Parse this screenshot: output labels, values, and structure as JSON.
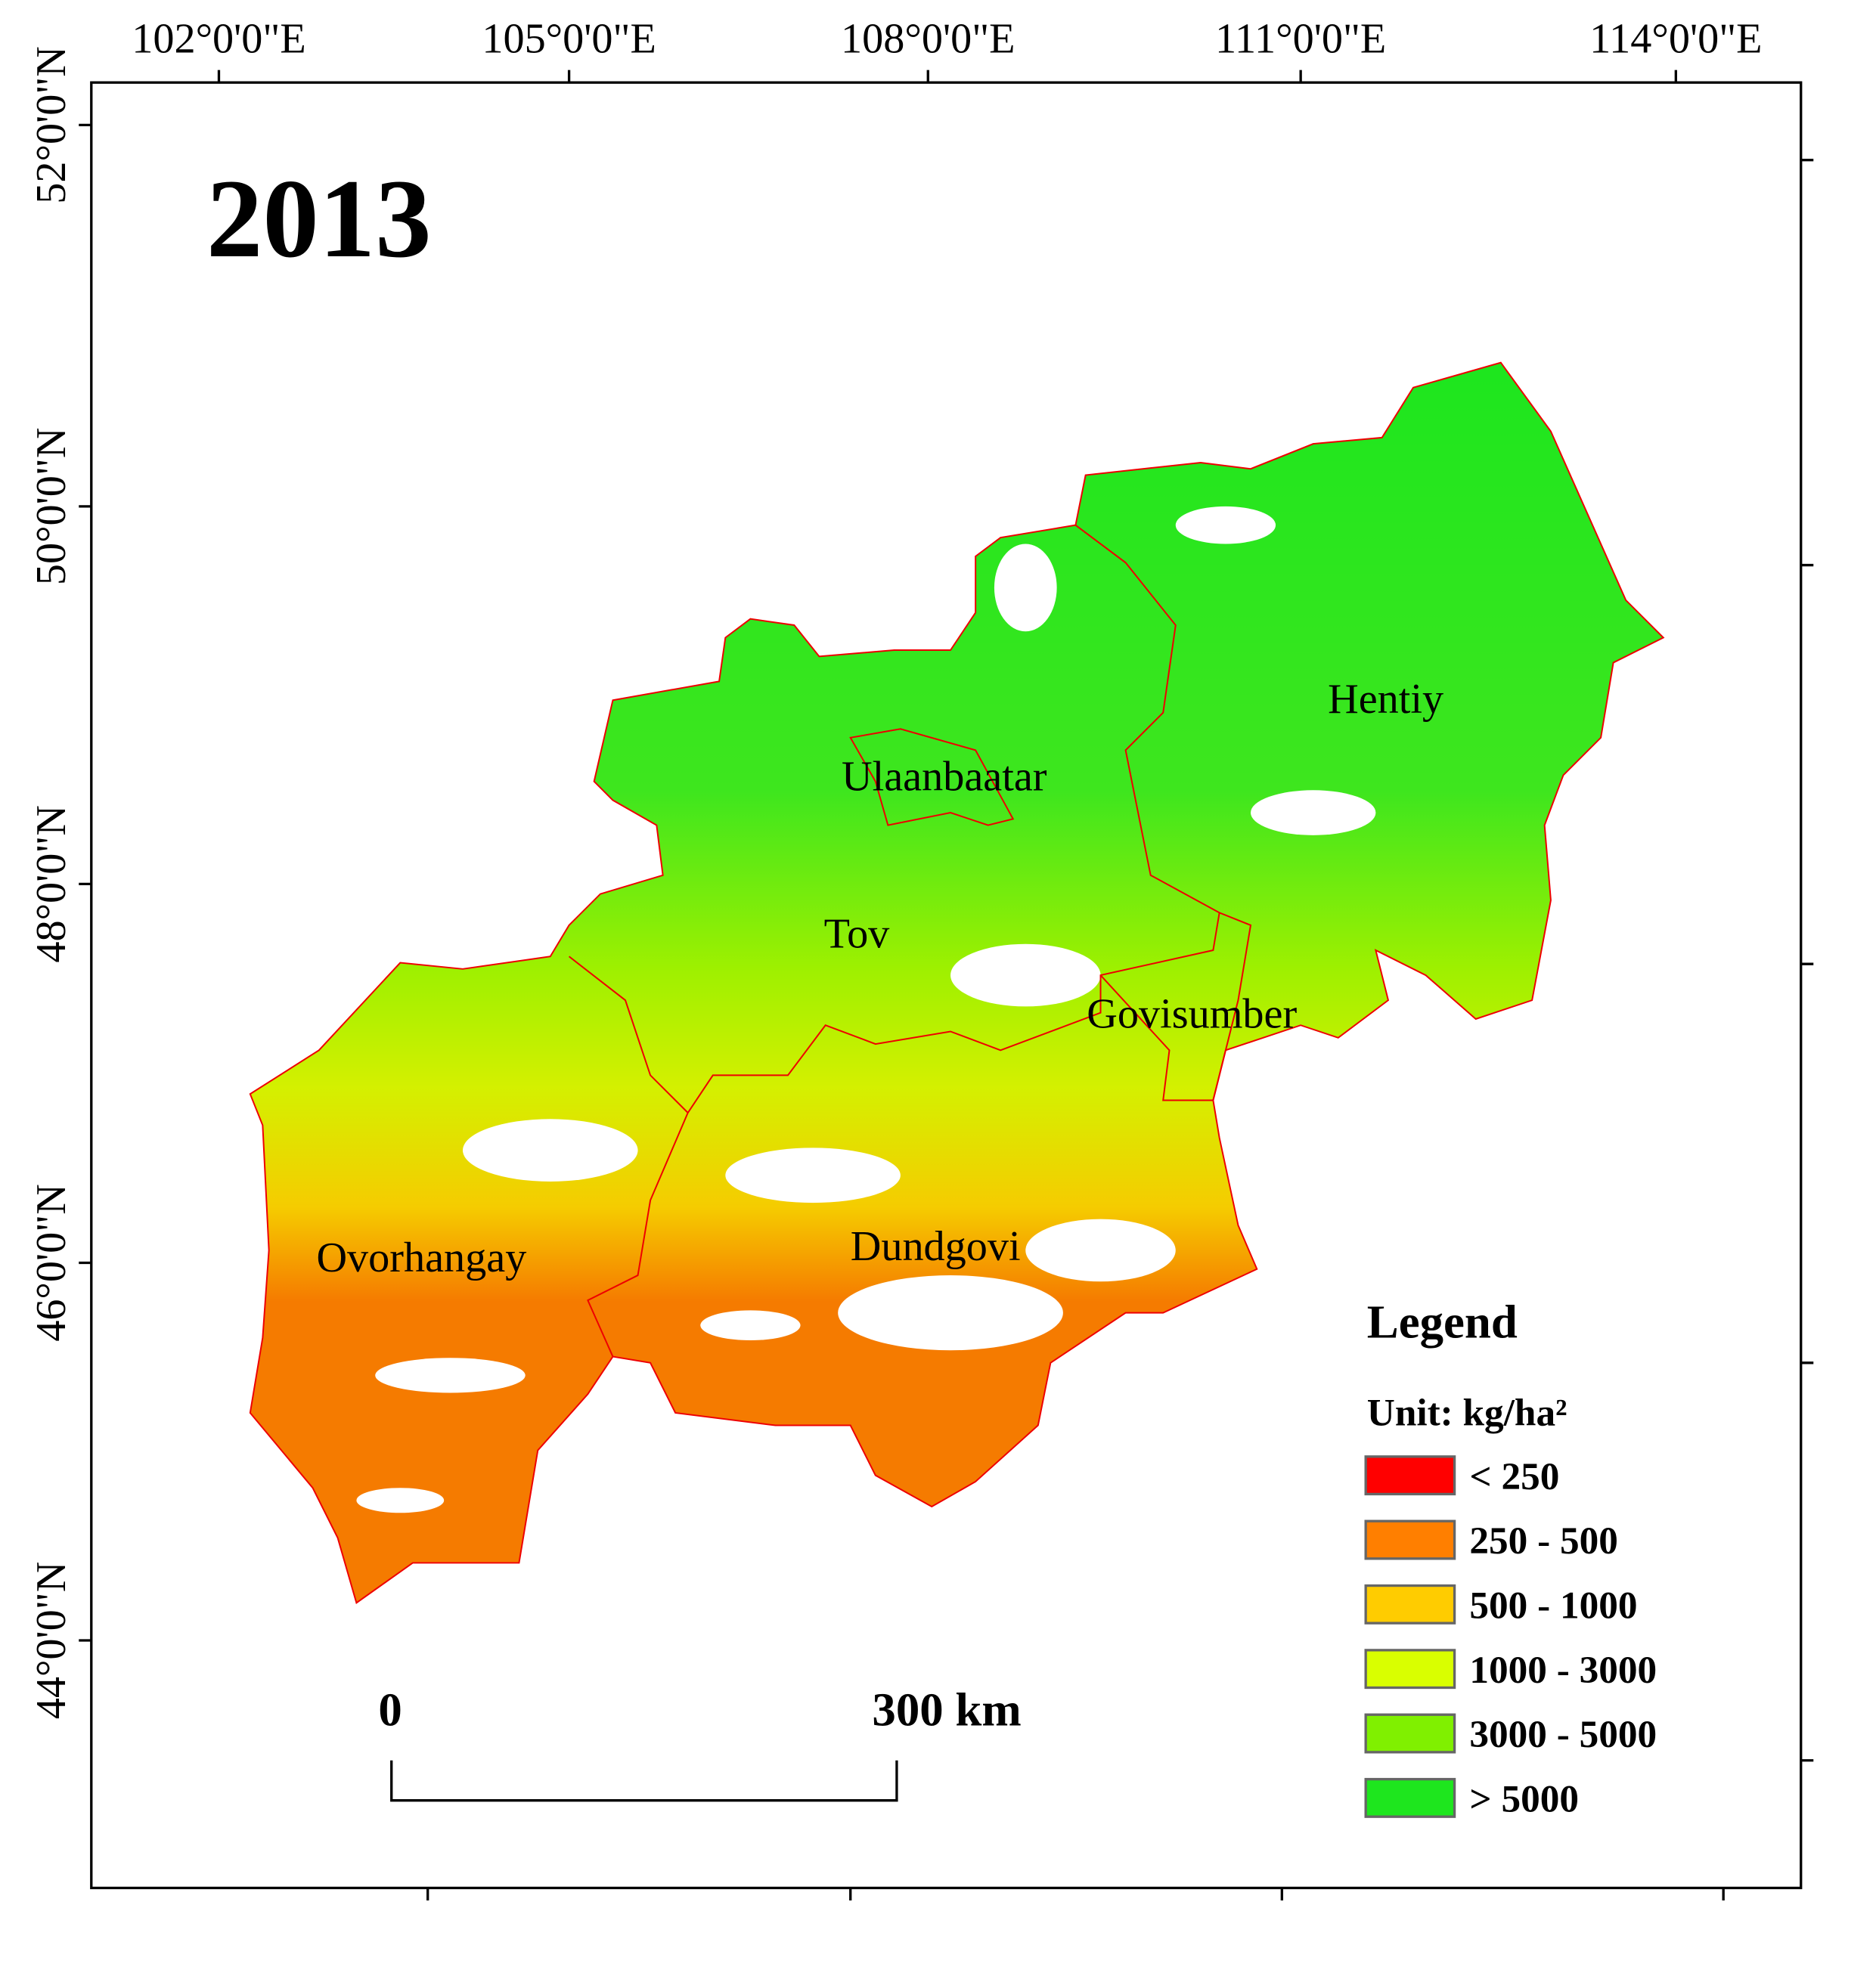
{
  "title": "2013",
  "longitude_labels": [
    "102°0'0\"E",
    "105°0'0\"E",
    "108°0'0\"E",
    "111°0'0\"E",
    "114°0'0\"E"
  ],
  "latitude_labels": [
    "52°0'0\"N",
    "50°0'0\"N",
    "48°0'0\"N",
    "46°0'0\"N",
    "44°0'0\"N"
  ],
  "regions": [
    {
      "label": "Hentiy"
    },
    {
      "label": "Ulaanbaatar"
    },
    {
      "label": "Tov"
    },
    {
      "label": "Govisumber"
    },
    {
      "label": "Ovorhangay"
    },
    {
      "label": "Dundgovi"
    }
  ],
  "legend": {
    "title": "Legend",
    "unit": "Unit: kg/ha²",
    "items": [
      {
        "label": "< 250",
        "color": "#ff0000"
      },
      {
        "label": "250 - 500",
        "color": "#ff7f00"
      },
      {
        "label": "500 - 1000",
        "color": "#ffcc00"
      },
      {
        "label": "1000 - 3000",
        "color": "#d9ff00"
      },
      {
        "label": "3000 - 5000",
        "color": "#80f000"
      },
      {
        "label": "> 5000",
        "color": "#1ee61e"
      }
    ]
  },
  "scale_bar": {
    "start": "0",
    "end": "300 km"
  }
}
